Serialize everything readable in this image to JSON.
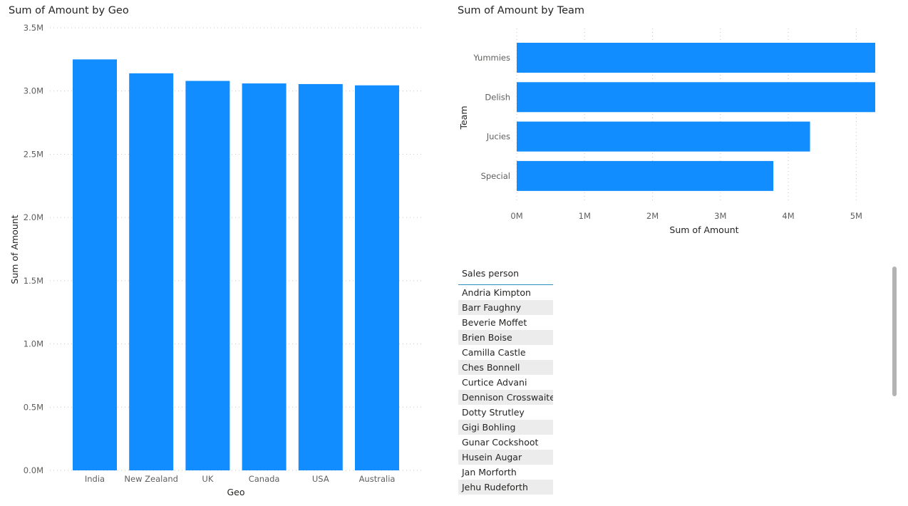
{
  "geo_visual": {
    "title": "Sum of Amount by Geo"
  },
  "team_visual": {
    "title": "Sum of Amount by Team"
  },
  "table": {
    "header": "Sales person",
    "rows": [
      "Andria Kimpton",
      "Barr Faughny",
      "Beverie Moffet",
      "Brien Boise",
      "Camilla Castle",
      "Ches Bonnell",
      "Curtice Advani",
      "Dennison Crosswaite",
      "Dotty Strutley",
      "Gigi Bohling",
      "Gunar Cockshoot",
      "Husein Augar",
      "Jan Morforth",
      "Jehu Rudeforth"
    ]
  },
  "colors": {
    "bar": "#118dff",
    "text": "#252423",
    "axis_text": "#605e5c",
    "grid": "#c8c6c4",
    "table_alt_row": "#ececec",
    "table_header_border": "#2a8fbd"
  },
  "chart_data": [
    {
      "type": "bar",
      "orientation": "vertical",
      "title": "Sum of Amount by Geo",
      "xlabel": "Geo",
      "ylabel": "Sum of Amount",
      "categories": [
        "India",
        "New Zealand",
        "UK",
        "Canada",
        "USA",
        "Australia"
      ],
      "values": [
        3250000,
        3140000,
        3080000,
        3060000,
        3055000,
        3045000
      ],
      "ylim": [
        0,
        3500000
      ],
      "yticks": [
        0,
        500000,
        1000000,
        1500000,
        2000000,
        2500000,
        3000000,
        3500000
      ],
      "ytick_labels": [
        "0.0M",
        "0.5M",
        "1.0M",
        "1.5M",
        "2.0M",
        "2.5M",
        "3.0M",
        "3.5M"
      ],
      "grid": true,
      "legend": "none"
    },
    {
      "type": "bar",
      "orientation": "horizontal",
      "title": "Sum of Amount by Team",
      "xlabel": "Sum of Amount",
      "ylabel": "Team",
      "categories": [
        "Yummies",
        "Delish",
        "Jucies",
        "Special"
      ],
      "values": [
        5280000,
        5280000,
        4320000,
        3780000
      ],
      "xlim": [
        0,
        5280000
      ],
      "xticks": [
        0,
        1000000,
        2000000,
        3000000,
        4000000,
        5000000
      ],
      "xtick_labels": [
        "0M",
        "1M",
        "2M",
        "3M",
        "4M",
        "5M"
      ],
      "grid": true,
      "legend": "none"
    }
  ]
}
